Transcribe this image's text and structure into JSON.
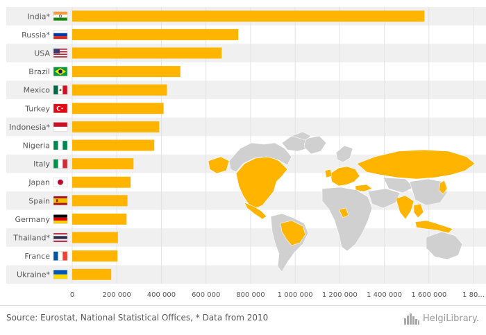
{
  "chart_data": {
    "type": "bar",
    "orientation": "horizontal",
    "categories": [
      "India*",
      "Russia*",
      "USA",
      "Brazil",
      "Mexico",
      "Turkey",
      "Indonesia*",
      "Nigeria",
      "Italy",
      "Japan",
      "Spain",
      "Germany",
      "Thailand*",
      "France",
      "Ukraine*"
    ],
    "flags": [
      "india",
      "russia",
      "usa",
      "brazil",
      "mexico",
      "turkey",
      "indonesia",
      "nigeria",
      "italy",
      "japan",
      "spain",
      "germany",
      "thailand",
      "france",
      "ukraine"
    ],
    "values": [
      1580000,
      745000,
      670000,
      485000,
      425000,
      410000,
      390000,
      368000,
      275000,
      262000,
      248000,
      244000,
      205000,
      203000,
      175000
    ],
    "x_ticks": [
      "0",
      "200 000",
      "400 000",
      "600 000",
      "800 000",
      "1 000 000",
      "1 200 000",
      "1 400 000",
      "1 600 000",
      "1 80..."
    ],
    "xlim": [
      0,
      1800000
    ],
    "title": "",
    "xlabel": "",
    "ylabel": "",
    "grid": true,
    "legend": "none"
  },
  "colors": {
    "bar": "#FFB400",
    "row_alt": "#F0F0F0",
    "grid": "#E3E3E3",
    "map_land": "#D0D0D0",
    "map_highlight": "#FFB400"
  },
  "footer": {
    "source": "Source: Eurostat, National Statistical Offices, * Data from 2010",
    "logo_text": "HelgiLibrary.",
    "logo_icon": "city-skyline-icon"
  }
}
